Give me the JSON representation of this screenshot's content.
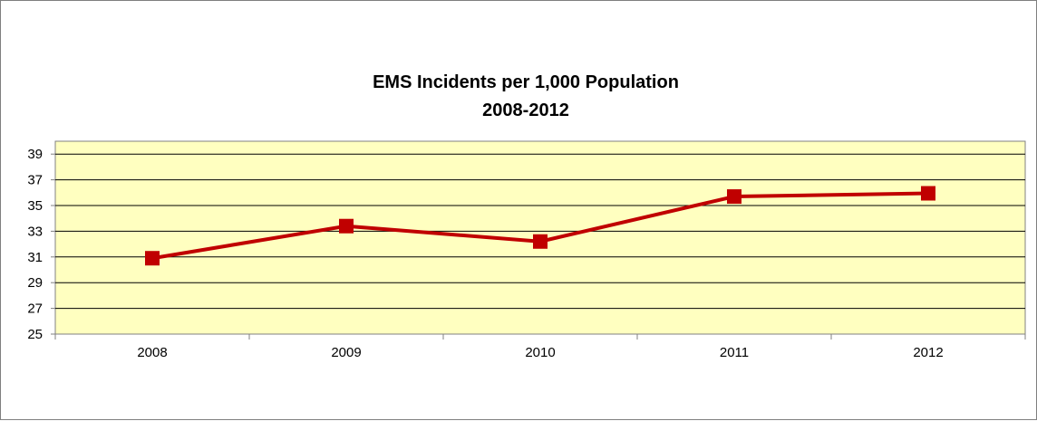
{
  "chart_data": {
    "type": "line",
    "title": "EMS Incidents per 1,000 Population",
    "subtitle": "2008-2012",
    "xlabel": "",
    "ylabel": "",
    "categories": [
      "2008",
      "2009",
      "2010",
      "2011",
      "2012"
    ],
    "series": [
      {
        "values": [
          30.9,
          33.4,
          32.2,
          35.7,
          35.95
        ],
        "color": "#c00000",
        "marker": "square"
      }
    ],
    "ylim": [
      25,
      40
    ],
    "yticks": [
      25,
      27,
      29,
      31,
      33,
      35,
      37,
      39
    ],
    "grid": true,
    "legend": "none",
    "plot_background": "#ffffc0",
    "gridline_color": "#000000"
  }
}
